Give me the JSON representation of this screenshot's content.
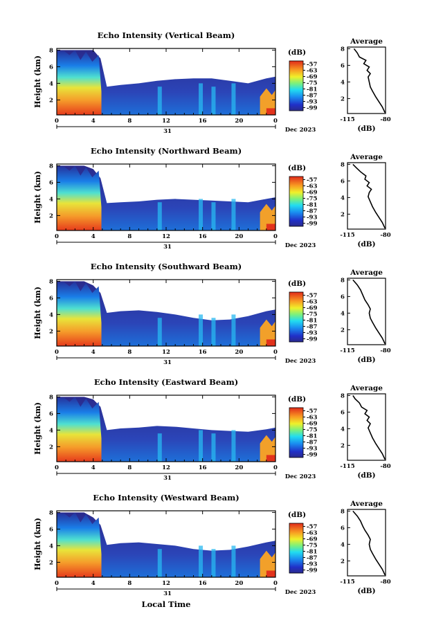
{
  "figure": {
    "x_axis_label": "Local Time",
    "date_label": "Dec 2023",
    "day_label": "31"
  },
  "chart_data": [
    {
      "type": "heatmap",
      "title": "Echo Intensity (Vertical Beam)",
      "ylabel": "Height (km)",
      "xlabel": "Local Time",
      "x_ticks": [
        "0",
        "4",
        "8",
        "12",
        "16",
        "20",
        "0"
      ],
      "y_ticks": [
        "2",
        "4",
        "6",
        "8"
      ],
      "xlim": [
        0,
        24
      ],
      "ylim": [
        0.2,
        8.2
      ],
      "colorbar": {
        "unit": "(dB)",
        "ticks": [
          "-57",
          "-63",
          "-69",
          "-75",
          "-81",
          "-87",
          "-93",
          "-99"
        ],
        "range": [
          -102,
          -54
        ]
      },
      "echo_top_km": [
        {
          "t": 0,
          "h": 8.0
        },
        {
          "t": 1,
          "h": 8.0
        },
        {
          "t": 2,
          "h": 8.0
        },
        {
          "t": 3,
          "h": 8.0
        },
        {
          "t": 4,
          "h": 8.0
        },
        {
          "t": 4.8,
          "h": 7.0
        },
        {
          "t": 5.5,
          "h": 3.6
        },
        {
          "t": 7,
          "h": 3.8
        },
        {
          "t": 9,
          "h": 4.0
        },
        {
          "t": 11,
          "h": 4.3
        },
        {
          "t": 13,
          "h": 4.5
        },
        {
          "t": 15,
          "h": 4.6
        },
        {
          "t": 17,
          "h": 4.6
        },
        {
          "t": 19,
          "h": 4.3
        },
        {
          "t": 21,
          "h": 4.0
        },
        {
          "t": 23,
          "h": 4.6
        },
        {
          "t": 24,
          "h": 4.8
        }
      ],
      "profile": {
        "title": "Average",
        "unit": "(dB)",
        "x_ticks": [
          "-115",
          "-80"
        ],
        "y_ticks": [
          "2",
          "4",
          "6",
          "8"
        ],
        "xlim": [
          -115,
          -80
        ],
        "points": [
          {
            "db": -80.5,
            "h": 0.3
          },
          {
            "db": -83,
            "h": 1.0
          },
          {
            "db": -86,
            "h": 1.6
          },
          {
            "db": -89,
            "h": 2.2
          },
          {
            "db": -92,
            "h": 2.9
          },
          {
            "db": -94,
            "h": 3.4
          },
          {
            "db": -95,
            "h": 4.0
          },
          {
            "db": -96,
            "h": 4.6
          },
          {
            "db": -94,
            "h": 5.0
          },
          {
            "db": -97,
            "h": 5.4
          },
          {
            "db": -95,
            "h": 5.8
          },
          {
            "db": -100,
            "h": 6.2
          },
          {
            "db": -98,
            "h": 6.6
          },
          {
            "db": -104,
            "h": 7.0
          },
          {
            "db": -106,
            "h": 7.5
          },
          {
            "db": -109,
            "h": 8.0
          }
        ]
      }
    },
    {
      "type": "heatmap",
      "title": "Echo Intensity (Northward Beam)",
      "ylabel": "Height (km)",
      "xlabel": "Local Time",
      "x_ticks": [
        "0",
        "4",
        "8",
        "12",
        "16",
        "20",
        "0"
      ],
      "y_ticks": [
        "2",
        "4",
        "6",
        "8"
      ],
      "xlim": [
        0,
        24
      ],
      "ylim": [
        0.2,
        8.2
      ],
      "colorbar": {
        "unit": "(dB)",
        "ticks": [
          "-57",
          "-63",
          "-69",
          "-75",
          "-81",
          "-87",
          "-93",
          "-99"
        ],
        "range": [
          -102,
          -54
        ]
      },
      "echo_top_km": [
        {
          "t": 0,
          "h": 8.0
        },
        {
          "t": 1,
          "h": 8.0
        },
        {
          "t": 2,
          "h": 8.0
        },
        {
          "t": 3,
          "h": 8.0
        },
        {
          "t": 4,
          "h": 7.6
        },
        {
          "t": 4.8,
          "h": 6.5
        },
        {
          "t": 5.5,
          "h": 3.5
        },
        {
          "t": 7,
          "h": 3.6
        },
        {
          "t": 9,
          "h": 3.7
        },
        {
          "t": 11,
          "h": 3.9
        },
        {
          "t": 13,
          "h": 4.0
        },
        {
          "t": 15,
          "h": 3.9
        },
        {
          "t": 17,
          "h": 3.8
        },
        {
          "t": 19,
          "h": 3.7
        },
        {
          "t": 21,
          "h": 3.6
        },
        {
          "t": 23,
          "h": 4.0
        },
        {
          "t": 24,
          "h": 4.2
        }
      ],
      "profile": {
        "title": "Average",
        "unit": "(dB)",
        "x_ticks": [
          "-115",
          "-80"
        ],
        "y_ticks": [
          "2",
          "4",
          "6",
          "8"
        ],
        "xlim": [
          -115,
          -80
        ],
        "points": [
          {
            "db": -80.5,
            "h": 0.3
          },
          {
            "db": -83,
            "h": 1.0
          },
          {
            "db": -86,
            "h": 1.6
          },
          {
            "db": -89,
            "h": 2.2
          },
          {
            "db": -92,
            "h": 2.9
          },
          {
            "db": -94,
            "h": 3.5
          },
          {
            "db": -96,
            "h": 4.1
          },
          {
            "db": -95,
            "h": 4.6
          },
          {
            "db": -93,
            "h": 5.0
          },
          {
            "db": -97,
            "h": 5.4
          },
          {
            "db": -95,
            "h": 5.8
          },
          {
            "db": -99,
            "h": 6.2
          },
          {
            "db": -98,
            "h": 6.6
          },
          {
            "db": -103,
            "h": 7.1
          },
          {
            "db": -107,
            "h": 7.6
          },
          {
            "db": -110,
            "h": 8.0
          }
        ]
      }
    },
    {
      "type": "heatmap",
      "title": "Echo Intensity (Southward Beam)",
      "ylabel": "Height (km)",
      "xlabel": "Local Time",
      "x_ticks": [
        "0",
        "4",
        "8",
        "12",
        "16",
        "20",
        "0"
      ],
      "y_ticks": [
        "2",
        "4",
        "6",
        "8"
      ],
      "xlim": [
        0,
        24
      ],
      "ylim": [
        0.2,
        8.2
      ],
      "colorbar": {
        "unit": "(dB)",
        "ticks": [
          "-57",
          "-63",
          "-69",
          "-75",
          "-81",
          "-87",
          "-93",
          "-99"
        ],
        "range": [
          -102,
          -54
        ]
      },
      "echo_top_km": [
        {
          "t": 0,
          "h": 8.0
        },
        {
          "t": 1,
          "h": 8.0
        },
        {
          "t": 2,
          "h": 8.0
        },
        {
          "t": 3,
          "h": 8.0
        },
        {
          "t": 4,
          "h": 7.5
        },
        {
          "t": 4.8,
          "h": 6.6
        },
        {
          "t": 5.5,
          "h": 4.2
        },
        {
          "t": 7,
          "h": 4.4
        },
        {
          "t": 9,
          "h": 4.5
        },
        {
          "t": 11,
          "h": 4.3
        },
        {
          "t": 13,
          "h": 4.0
        },
        {
          "t": 15,
          "h": 3.6
        },
        {
          "t": 17,
          "h": 3.3
        },
        {
          "t": 19,
          "h": 3.4
        },
        {
          "t": 21,
          "h": 3.8
        },
        {
          "t": 23,
          "h": 4.4
        },
        {
          "t": 24,
          "h": 4.6
        }
      ],
      "profile": {
        "title": "Average",
        "unit": "(dB)",
        "x_ticks": [
          "-115",
          "-80"
        ],
        "y_ticks": [
          "2",
          "4",
          "6",
          "8"
        ],
        "xlim": [
          -115,
          -80
        ],
        "points": [
          {
            "db": -80.5,
            "h": 0.3
          },
          {
            "db": -83,
            "h": 1.0
          },
          {
            "db": -86,
            "h": 1.6
          },
          {
            "db": -89,
            "h": 2.2
          },
          {
            "db": -92,
            "h": 2.9
          },
          {
            "db": -94,
            "h": 3.4
          },
          {
            "db": -95,
            "h": 4.0
          },
          {
            "db": -94,
            "h": 4.5
          },
          {
            "db": -96,
            "h": 5.0
          },
          {
            "db": -99,
            "h": 5.6
          },
          {
            "db": -101,
            "h": 6.2
          },
          {
            "db": -103,
            "h": 6.8
          },
          {
            "db": -106,
            "h": 7.4
          },
          {
            "db": -110,
            "h": 8.0
          }
        ]
      }
    },
    {
      "type": "heatmap",
      "title": "Echo Intensity (Eastward Beam)",
      "ylabel": "Height (km)",
      "xlabel": "Local Time",
      "x_ticks": [
        "0",
        "4",
        "8",
        "12",
        "16",
        "20",
        "0"
      ],
      "y_ticks": [
        "2",
        "4",
        "6",
        "8"
      ],
      "xlim": [
        0,
        24
      ],
      "ylim": [
        0.2,
        8.2
      ],
      "colorbar": {
        "unit": "(dB)",
        "ticks": [
          "-57",
          "-63",
          "-69",
          "-75",
          "-81",
          "-87",
          "-93",
          "-99"
        ],
        "range": [
          -102,
          -54
        ]
      },
      "echo_top_km": [
        {
          "t": 0,
          "h": 8.0
        },
        {
          "t": 1,
          "h": 8.0
        },
        {
          "t": 2,
          "h": 8.0
        },
        {
          "t": 3,
          "h": 8.0
        },
        {
          "t": 4,
          "h": 7.7
        },
        {
          "t": 4.8,
          "h": 6.8
        },
        {
          "t": 5.5,
          "h": 4.0
        },
        {
          "t": 7,
          "h": 4.2
        },
        {
          "t": 9,
          "h": 4.3
        },
        {
          "t": 11,
          "h": 4.5
        },
        {
          "t": 13,
          "h": 4.4
        },
        {
          "t": 15,
          "h": 4.2
        },
        {
          "t": 17,
          "h": 4.0
        },
        {
          "t": 19,
          "h": 3.9
        },
        {
          "t": 21,
          "h": 3.8
        },
        {
          "t": 23,
          "h": 4.1
        },
        {
          "t": 24,
          "h": 4.3
        }
      ],
      "profile": {
        "title": "Average",
        "unit": "(dB)",
        "x_ticks": [
          "-115",
          "-80"
        ],
        "y_ticks": [
          "2",
          "4",
          "6",
          "8"
        ],
        "xlim": [
          -115,
          -80
        ],
        "points": [
          {
            "db": -80.5,
            "h": 0.3
          },
          {
            "db": -83,
            "h": 1.0
          },
          {
            "db": -86,
            "h": 1.6
          },
          {
            "db": -89,
            "h": 2.2
          },
          {
            "db": -92,
            "h": 2.9
          },
          {
            "db": -94,
            "h": 3.5
          },
          {
            "db": -96,
            "h": 4.1
          },
          {
            "db": -94,
            "h": 4.6
          },
          {
            "db": -97,
            "h": 5.0
          },
          {
            "db": -95,
            "h": 5.4
          },
          {
            "db": -99,
            "h": 5.8
          },
          {
            "db": -97,
            "h": 6.2
          },
          {
            "db": -102,
            "h": 6.6
          },
          {
            "db": -104,
            "h": 7.1
          },
          {
            "db": -108,
            "h": 7.6
          },
          {
            "db": -110,
            "h": 8.0
          }
        ]
      }
    },
    {
      "type": "heatmap",
      "title": "Echo Intensity (Westward Beam)",
      "ylabel": "Height (km)",
      "xlabel": "Local Time",
      "x_ticks": [
        "0",
        "4",
        "8",
        "12",
        "16",
        "20",
        "0"
      ],
      "y_ticks": [
        "2",
        "4",
        "6",
        "8"
      ],
      "xlim": [
        0,
        24
      ],
      "ylim": [
        0.2,
        8.2
      ],
      "colorbar": {
        "unit": "(dB)",
        "ticks": [
          "-57",
          "-63",
          "-69",
          "-75",
          "-81",
          "-87",
          "-93",
          "-99"
        ],
        "range": [
          -102,
          -54
        ]
      },
      "echo_top_km": [
        {
          "t": 0,
          "h": 8.0
        },
        {
          "t": 1,
          "h": 8.0
        },
        {
          "t": 2,
          "h": 8.0
        },
        {
          "t": 3,
          "h": 8.0
        },
        {
          "t": 4,
          "h": 7.4
        },
        {
          "t": 4.8,
          "h": 6.5
        },
        {
          "t": 5.5,
          "h": 4.1
        },
        {
          "t": 7,
          "h": 4.3
        },
        {
          "t": 9,
          "h": 4.4
        },
        {
          "t": 11,
          "h": 4.2
        },
        {
          "t": 13,
          "h": 4.0
        },
        {
          "t": 15,
          "h": 3.6
        },
        {
          "t": 17,
          "h": 3.4
        },
        {
          "t": 19,
          "h": 3.5
        },
        {
          "t": 21,
          "h": 3.9
        },
        {
          "t": 23,
          "h": 4.4
        },
        {
          "t": 24,
          "h": 4.6
        }
      ],
      "profile": {
        "title": "Average",
        "unit": "(dB)",
        "x_ticks": [
          "-115",
          "-80"
        ],
        "y_ticks": [
          "2",
          "4",
          "6",
          "8"
        ],
        "xlim": [
          -115,
          -80
        ],
        "points": [
          {
            "db": -80.5,
            "h": 0.3
          },
          {
            "db": -83,
            "h": 1.0
          },
          {
            "db": -86,
            "h": 1.6
          },
          {
            "db": -89,
            "h": 2.2
          },
          {
            "db": -92,
            "h": 2.9
          },
          {
            "db": -94,
            "h": 3.4
          },
          {
            "db": -95,
            "h": 4.0
          },
          {
            "db": -94,
            "h": 4.6
          },
          {
            "db": -96,
            "h": 5.1
          },
          {
            "db": -99,
            "h": 5.7
          },
          {
            "db": -101,
            "h": 6.2
          },
          {
            "db": -103,
            "h": 6.8
          },
          {
            "db": -106,
            "h": 7.4
          },
          {
            "db": -110,
            "h": 8.0
          }
        ]
      }
    }
  ]
}
